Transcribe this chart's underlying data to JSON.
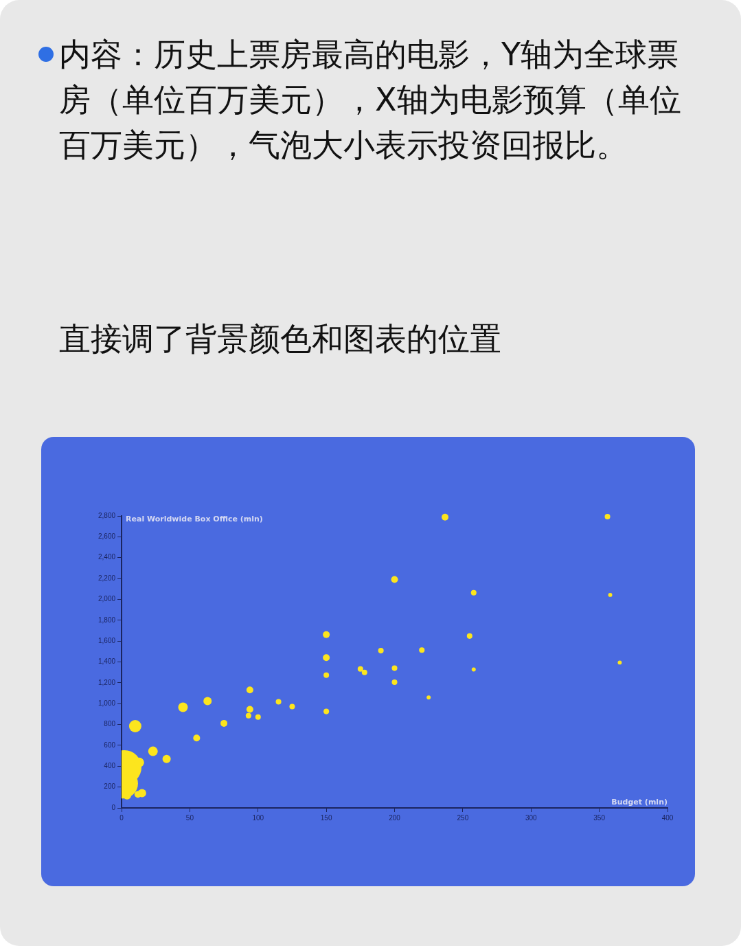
{
  "chart_data": {
    "type": "bubble",
    "title": "内容：历史上票房最高的电影，Y轴为全球票房（单位百万美元），X轴为电影预算（单位百万美元），气泡大小表示投资回报比。",
    "annotations": [
      "直接调了背景颜色和图表的位置"
    ],
    "xlabel": "Budget (mln)",
    "ylabel": "Real Worldwide Box Office (mln)",
    "xlim": [
      0,
      400
    ],
    "xticks": [
      0,
      50,
      100,
      150,
      200,
      250,
      300,
      350,
      400
    ],
    "ylim": [
      0,
      2800
    ],
    "yticks": [
      0,
      200,
      400,
      600,
      800,
      {
        "value": 1000,
        "label": "1,000"
      },
      {
        "value": 1200,
        "label": "1,200"
      },
      {
        "value": 1400,
        "label": "1,400"
      },
      {
        "value": 1600,
        "label": "1,600"
      },
      {
        "value": 1800,
        "label": "1,800"
      },
      {
        "value": 2000,
        "label": "2,000"
      },
      {
        "value": 2200,
        "label": "2,200"
      },
      {
        "value": 2400,
        "label": "2,400"
      },
      {
        "value": 2600,
        "label": "2,600"
      },
      {
        "value": 2800,
        "label": "2,800"
      }
    ],
    "legend": false,
    "series": [
      {
        "color": "#fce51e",
        "x": [
          237,
          356,
          200,
          258,
          358,
          150,
          255,
          150,
          190,
          220,
          175,
          178,
          200,
          258,
          150,
          365,
          200,
          225,
          150,
          94,
          63,
          45,
          115,
          125,
          94,
          93,
          100,
          75,
          55,
          10,
          23,
          33,
          2,
          1,
          13,
          15,
          4,
          12
        ],
        "values": [
          2788,
          2794,
          2191,
          2064,
          2043,
          1662,
          1648,
          1441,
          1508,
          1514,
          1333,
          1300,
          1340,
          1327,
          1273,
          1394,
          1206,
          1059,
          925,
          1132,
          1025,
          965,
          1018,
          972,
          945,
          885,
          871,
          811,
          670,
          784,
          543,
          469,
          389,
          235,
          436,
          141,
          121,
          130
        ],
        "sizes": [
          0.04,
          0.026,
          0.04,
          0.026,
          0.014,
          0.04,
          0.026,
          0.04,
          0.026,
          0.026,
          0.026,
          0.026,
          0.026,
          0.014,
          0.026,
          0.014,
          0.026,
          0.014,
          0.026,
          0.04,
          0.058,
          0.078,
          0.026,
          0.026,
          0.04,
          0.026,
          0.026,
          0.04,
          0.04,
          0.13,
          0.078,
          0.058,
          1,
          0.77,
          0.078,
          0.058,
          0.058,
          0.04
        ]
      }
    ]
  }
}
